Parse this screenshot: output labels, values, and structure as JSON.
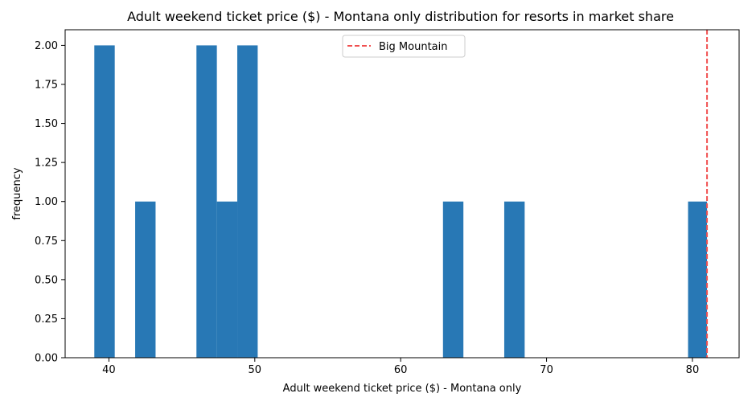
{
  "chart_data": {
    "type": "bar",
    "subtype": "histogram",
    "title": "Adult weekend ticket price ($) - Montana only distribution for resorts in market share",
    "xlabel": "Adult weekend ticket price ($) - Montana only",
    "ylabel": "frequency",
    "xlim": [
      37.0,
      83.2
    ],
    "ylim": [
      0.0,
      2.1
    ],
    "xticks": [
      40,
      50,
      60,
      70,
      80
    ],
    "yticks": [
      0.0,
      0.25,
      0.5,
      0.75,
      1.0,
      1.25,
      1.5,
      1.75,
      2.0
    ],
    "ytick_labels": [
      "0.00",
      "0.25",
      "0.50",
      "0.75",
      "1.00",
      "1.25",
      "1.50",
      "1.75",
      "2.00"
    ],
    "bins": [
      {
        "start": 39.0,
        "end": 40.4,
        "count": 2
      },
      {
        "start": 41.8,
        "end": 43.2,
        "count": 1
      },
      {
        "start": 46.0,
        "end": 47.4,
        "count": 2
      },
      {
        "start": 47.4,
        "end": 48.8,
        "count": 1
      },
      {
        "start": 48.8,
        "end": 50.2,
        "count": 2
      },
      {
        "start": 62.9,
        "end": 64.3,
        "count": 1
      },
      {
        "start": 67.1,
        "end": 68.5,
        "count": 1
      },
      {
        "start": 79.7,
        "end": 81.0,
        "count": 1
      }
    ],
    "bar_color": "#2878b5",
    "reference_line": {
      "x": 81.0,
      "label": "Big Mountain",
      "color": "#f05050",
      "style": "dashed"
    },
    "legend": {
      "placement": "top-center",
      "entries": [
        "Big Mountain"
      ]
    },
    "grid": false
  }
}
